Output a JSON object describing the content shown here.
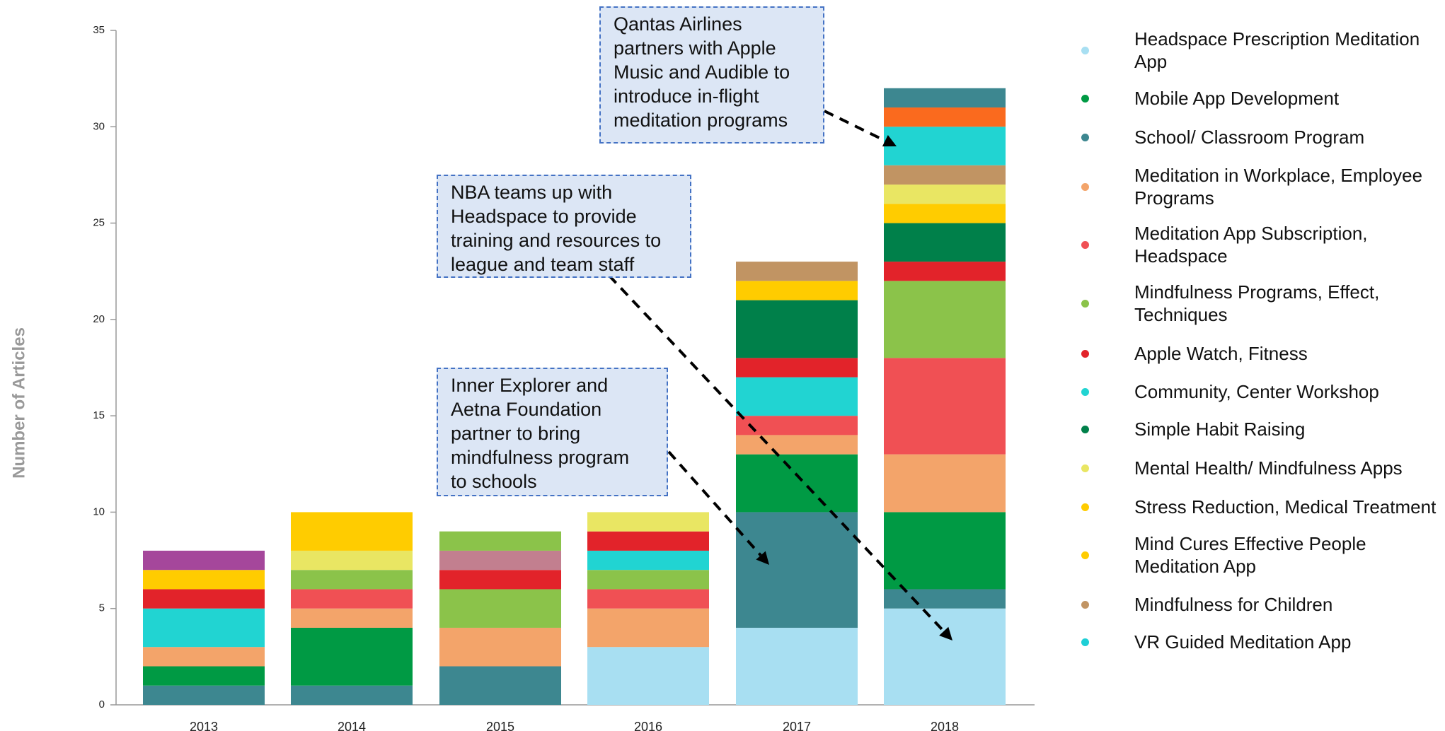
{
  "chart_data": {
    "type": "bar",
    "stacked": true,
    "y_label": "Number of Articles",
    "categories": [
      "2013",
      "2014",
      "2015",
      "2016",
      "2017",
      "2018"
    ],
    "ylim": [
      0,
      35
    ],
    "yticks": [
      0,
      5,
      10,
      15,
      20,
      25,
      30,
      35
    ],
    "bars": [
      {
        "segments": [
          {
            "color": "#3d8790",
            "value": 1
          },
          {
            "color": "#009a44",
            "value": 1
          },
          {
            "color": "#f3a46a",
            "value": 1
          },
          {
            "color": "#21d4d2",
            "value": 2
          },
          {
            "color": "#e2232a",
            "value": 1
          },
          {
            "color": "#ffcc00",
            "value": 1
          },
          {
            "color": "#a5479b",
            "value": 1
          }
        ]
      },
      {
        "segments": [
          {
            "color": "#3d8790",
            "value": 1
          },
          {
            "color": "#009a44",
            "value": 3
          },
          {
            "color": "#f3a46a",
            "value": 1
          },
          {
            "color": "#f05054",
            "value": 1
          },
          {
            "color": "#8bc34a",
            "value": 1
          },
          {
            "color": "#e9e663",
            "value": 1
          },
          {
            "color": "#ffcc00",
            "value": 2
          }
        ]
      },
      {
        "segments": [
          {
            "color": "#3d8790",
            "value": 2
          },
          {
            "color": "#f3a46a",
            "value": 2
          },
          {
            "color": "#8bc34a",
            "value": 2
          },
          {
            "color": "#e2232a",
            "value": 1
          },
          {
            "color": "#c27f8f",
            "value": 1
          },
          {
            "color": "#8bc34a",
            "value": 1
          }
        ]
      },
      {
        "segments": [
          {
            "color": "#a8dff2",
            "value": 3
          },
          {
            "color": "#f3a46a",
            "value": 2
          },
          {
            "color": "#f05054",
            "value": 1
          },
          {
            "color": "#8bc34a",
            "value": 1
          },
          {
            "color": "#21d4d2",
            "value": 1
          },
          {
            "color": "#e2232a",
            "value": 1
          },
          {
            "color": "#e9e663",
            "value": 1
          }
        ]
      },
      {
        "segments": [
          {
            "color": "#a8dff2",
            "value": 4
          },
          {
            "color": "#3d8790",
            "value": 6
          },
          {
            "color": "#009a44",
            "value": 3
          },
          {
            "color": "#f3a46a",
            "value": 1
          },
          {
            "color": "#f05054",
            "value": 1
          },
          {
            "color": "#21d4d2",
            "value": 2
          },
          {
            "color": "#e2232a",
            "value": 1
          },
          {
            "color": "#00804a",
            "value": 3
          },
          {
            "color": "#ffcc00",
            "value": 1
          },
          {
            "color": "#c19463",
            "value": 1
          }
        ]
      },
      {
        "segments": [
          {
            "color": "#a8dff2",
            "value": 5
          },
          {
            "color": "#3d8790",
            "value": 1
          },
          {
            "color": "#009a44",
            "value": 4
          },
          {
            "color": "#f3a46a",
            "value": 3
          },
          {
            "color": "#f05054",
            "value": 5
          },
          {
            "color": "#8bc34a",
            "value": 4
          },
          {
            "color": "#e2232a",
            "value": 1
          },
          {
            "color": "#00804a",
            "value": 2
          },
          {
            "color": "#ffcc00",
            "value": 1
          },
          {
            "color": "#e9e663",
            "value": 1
          },
          {
            "color": "#c19463",
            "value": 1
          },
          {
            "color": "#21d4d2",
            "value": 2
          },
          {
            "color": "#fa6a1e",
            "value": 1
          },
          {
            "color": "#3d8790",
            "value": 1
          }
        ]
      }
    ],
    "legend": [
      {
        "name": "Headspace Prescription Meditation App",
        "color": "#a8dff2"
      },
      {
        "name": "Mobile App Development",
        "color": "#009a44"
      },
      {
        "name": "School/ Classroom Program",
        "color": "#3d8790"
      },
      {
        "name": "Meditation in Workplace, Employee Programs",
        "color": "#f3a46a"
      },
      {
        "name": "Meditation App Subscription, Headspace",
        "color": "#f05054"
      },
      {
        "name": "Mindfulness Programs, Effect, Techniques",
        "color": "#8bc34a"
      },
      {
        "name": "Apple Watch, Fitness",
        "color": "#e2232a"
      },
      {
        "name": "Community, Center Workshop",
        "color": "#21d4d2"
      },
      {
        "name": "Simple Habit Raising",
        "color": "#00804a"
      },
      {
        "name": "Mental Health/ Mindfulness Apps",
        "color": "#e9e663"
      },
      {
        "name": "Stress Reduction, Medical Treatment",
        "color": "#ffcc00"
      },
      {
        "name": "Mind Cures Effective People Meditation App",
        "color": "#ffcc00"
      },
      {
        "name": "Mindfulness for Children",
        "color": "#c19463"
      },
      {
        "name": "VR Guided Meditation App",
        "color": "#1ecfd6"
      }
    ],
    "annotations": [
      {
        "lines": [
          "Qantas Airlines",
          "partners with Apple",
          "Music and Audible to",
          "introduce in-flight",
          "meditation programs"
        ]
      },
      {
        "lines": [
          "NBA teams up with",
          "Headspace to provide",
          "training and resources to",
          "league and team staff"
        ]
      },
      {
        "lines": [
          "Inner Explorer and",
          "Aetna Foundation",
          "partner to bring",
          "mindfulness program",
          "to schools"
        ]
      }
    ]
  }
}
